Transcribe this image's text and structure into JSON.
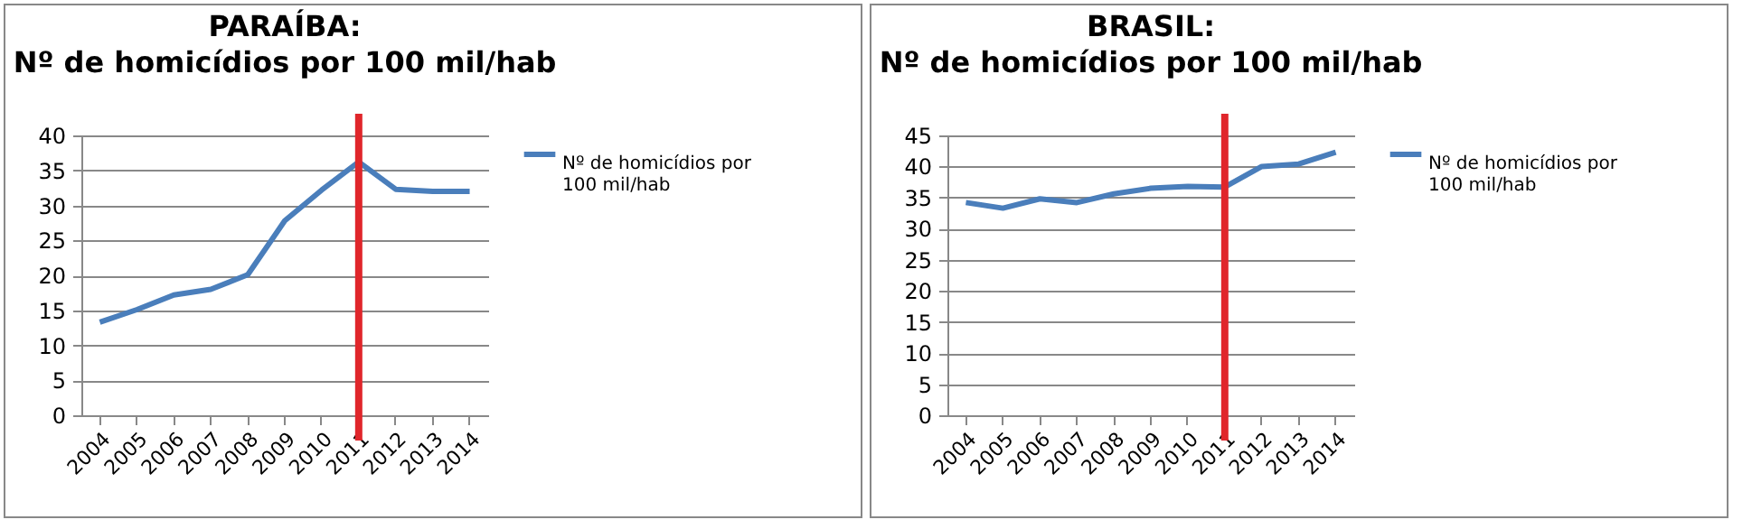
{
  "chart_data": [
    {
      "type": "line",
      "title": "PARAÍBA:",
      "subtitle": "Nº de homicídios por 100 mil/hab",
      "categories": [
        "2004",
        "2005",
        "2006",
        "2007",
        "2008",
        "2009",
        "2010",
        "2011",
        "2012",
        "2013",
        "2014"
      ],
      "series": [
        {
          "name": "Nº de homicídios por 100 mil/hab",
          "color": "#4a7ebb",
          "values": [
            13.3,
            15.1,
            17.2,
            18.0,
            20.1,
            27.8,
            32.2,
            36.2,
            32.3,
            32.0,
            32.0
          ]
        }
      ],
      "ylim": [
        0,
        40
      ],
      "yticks": [
        0,
        5,
        10,
        15,
        20,
        25,
        30,
        35,
        40
      ],
      "grid": "y",
      "legend": "right",
      "marker": "none",
      "line_style": "solid",
      "ref_lines": [
        {
          "axis": "x",
          "value": "2011",
          "color": "#e0262b"
        }
      ]
    },
    {
      "type": "line",
      "title": "BRASIL:",
      "subtitle": "Nº de homicídios por 100 mil/hab",
      "categories": [
        "2004",
        "2005",
        "2006",
        "2007",
        "2008",
        "2009",
        "2010",
        "2011",
        "2012",
        "2013",
        "2014"
      ],
      "series": [
        {
          "name": "Nº de homicídios por 100 mil/hab",
          "color": "#4a7ebb",
          "values": [
            34.2,
            33.3,
            34.8,
            34.2,
            35.6,
            36.5,
            36.8,
            36.7,
            40.0,
            40.4,
            42.3
          ]
        }
      ],
      "ylim": [
        0,
        45
      ],
      "yticks": [
        0,
        5,
        10,
        15,
        20,
        25,
        30,
        35,
        40,
        45
      ],
      "grid": "y",
      "legend": "right",
      "marker": "none",
      "line_style": "solid",
      "ref_lines": [
        {
          "axis": "x",
          "value": "2011",
          "color": "#e0262b"
        }
      ]
    }
  ]
}
